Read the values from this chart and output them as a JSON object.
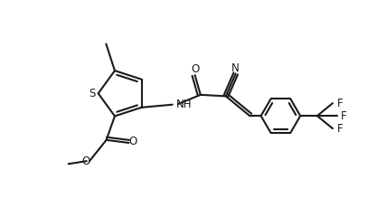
{
  "bg_color": "#ffffff",
  "line_color": "#1a1a1a",
  "line_width": 1.5,
  "font_size": 8.5,
  "figsize": [
    4.07,
    2.19
  ],
  "dpi": 100,
  "xlim": [
    -0.05,
    1.05
  ],
  "ylim": [
    -0.05,
    1.05
  ]
}
